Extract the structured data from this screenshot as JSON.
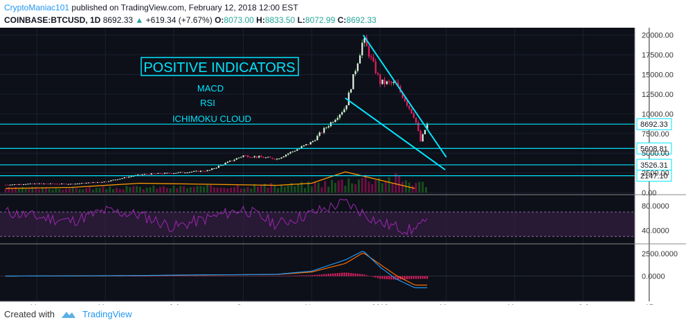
{
  "header": {
    "author": "CryptoManiac101",
    "published_text": "published on TradingView.com, February 12, 2018 12:00 EST",
    "symbol": "COINBASE:BTCUSD, 1D",
    "last": "8692.33",
    "change": "+619.34 (+7.67%)",
    "o_label": "O:",
    "o": "8073.00",
    "h_label": "H:",
    "h": "8833.50",
    "l_label": "L:",
    "l": "8072.99",
    "c_label": "C:",
    "c": "8692.33"
  },
  "annotations": {
    "box_title": "POSITIVE INDICATORS",
    "items": [
      "MACD",
      "RSI",
      "ICHIMOKU CLOUD"
    ]
  },
  "footer": {
    "created_with": "Created with",
    "brand": "TradingView"
  },
  "colors": {
    "annotation": "#00e5ff",
    "candle_up": "#2e7d32",
    "candle_down": "#e91e63",
    "rsi": "#9c27b0",
    "macd": "#2196f3",
    "signal": "#ff6d00",
    "histogram": "#e91e63",
    "volume_ma": "#ff9800",
    "background": "#0d1018"
  },
  "chart_data": [
    {
      "type": "line",
      "panel": "price",
      "x_axis_labels": [
        "Mar",
        "May",
        "Jul",
        "Sep",
        "Nov",
        "2018",
        "Mar",
        "May",
        "Jul",
        "17"
      ],
      "y_ticks": [
        "20000.00",
        "17500.00",
        "15000.00",
        "12500.00",
        "10000.00",
        "7500.00",
        "5000.00",
        "2500.00",
        "0.00"
      ],
      "y_range": [
        0,
        20500
      ],
      "price_labels": [
        "8692.33",
        "5608.81",
        "3526.31",
        "2147.10"
      ],
      "x": [
        "Feb 1",
        "Mar 1",
        "Apr 1",
        "May 1",
        "Jun 1",
        "Jul 1",
        "Aug 1",
        "Sep 1",
        "Oct 1",
        "Nov 1",
        "Dec 1",
        "Dec 17",
        "Jan 1",
        "Jan 15",
        "Feb 1",
        "Feb 6",
        "Feb 12"
      ],
      "series": [
        {
          "values": [
            1000,
            1150,
            1100,
            1400,
            2300,
            2500,
            2800,
            4700,
            4300,
            6400,
            10800,
            19500,
            14000,
            13800,
            9500,
            6500,
            8692
          ]
        }
      ],
      "horizontal_lines": [
        8692.33,
        5608.81,
        3526.31,
        2147.1
      ],
      "trendlines": [
        {
          "from": [
            "Dec 17",
            20000
          ],
          "to": [
            "Mar 1",
            4500
          ]
        },
        {
          "from": [
            "Dec 1",
            12000
          ],
          "to": [
            "Feb 28",
            2900
          ]
        }
      ]
    },
    {
      "type": "area",
      "panel": "volume",
      "x": [
        "Feb",
        "Apr",
        "Jun",
        "Aug",
        "Oct",
        "Nov",
        "Dec",
        "Jan",
        "Feb"
      ],
      "volume_ma": [
        0.2,
        0.25,
        0.45,
        0.4,
        0.35,
        0.45,
        1.0,
        0.6,
        0.2
      ]
    },
    {
      "type": "line",
      "panel": "rsi",
      "y_ticks": [
        "80.0000",
        "40.0000"
      ],
      "y_range": [
        20,
        95
      ],
      "x": [
        "Feb",
        "Mar",
        "Apr",
        "May",
        "Jun",
        "Jul",
        "Aug",
        "Sep",
        "Oct",
        "Nov",
        "Dec",
        "Jan",
        "Feb"
      ],
      "series": [
        {
          "values": [
            70,
            62,
            55,
            72,
            65,
            45,
            60,
            75,
            50,
            68,
            86,
            52,
            38
          ]
        }
      ]
    },
    {
      "type": "line",
      "panel": "macd",
      "y_ticks": [
        "2500.0000",
        "0.0000"
      ],
      "y_range": [
        -1500,
        3500
      ],
      "x": [
        "Feb",
        "Apr",
        "Jun",
        "Aug",
        "Sep",
        "Oct",
        "Nov",
        "Dec",
        "Dec 17",
        "Jan",
        "Jan 15",
        "Feb"
      ],
      "series": [
        {
          "name": "MACD",
          "values": [
            0,
            20,
            60,
            150,
            150,
            200,
            550,
            1800,
            2800,
            1000,
            -300,
            -1300
          ]
        },
        {
          "name": "Signal",
          "values": [
            0,
            15,
            50,
            120,
            160,
            180,
            450,
            1400,
            2600,
            1300,
            100,
            -1000
          ]
        }
      ]
    }
  ]
}
